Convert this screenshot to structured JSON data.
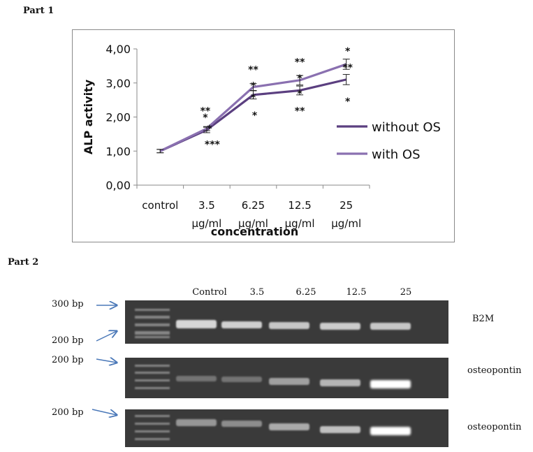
{
  "part1_title": "Part 1",
  "part2_title": "Part 2",
  "chart_data": {
    "type": "line",
    "categories": [
      "control",
      "3.5 µg/ml",
      "6.25 µg/ml",
      "12.5 µg/ml",
      "25 µg/ml"
    ],
    "category_lines": [
      [
        "control"
      ],
      [
        "3.5",
        "µg/ml"
      ],
      [
        "6.25",
        "µg/ml"
      ],
      [
        "12.5",
        "µg/ml"
      ],
      [
        "25",
        "µg/ml"
      ]
    ],
    "series": [
      {
        "name": "without OS",
        "values": [
          1.0,
          1.62,
          2.65,
          2.78,
          3.1
        ],
        "errors": [
          0.05,
          0.08,
          0.12,
          0.13,
          0.15
        ],
        "color": "#5b3f80"
      },
      {
        "name": "with OS",
        "values": [
          1.0,
          1.66,
          2.88,
          3.08,
          3.55
        ],
        "errors": [
          0.05,
          0.06,
          0.1,
          0.14,
          0.15
        ],
        "color": "#8a70b0"
      }
    ],
    "ylabel": "ALP activity",
    "xlabel": "concentration",
    "ylim": [
      0,
      4
    ],
    "yticks": [
      "0,00",
      "1,00",
      "2,00",
      "3,00",
      "4,00"
    ],
    "legend_position": "right",
    "annotations": [
      "**",
      "*",
      "*",
      "***",
      "**",
      "*",
      "*",
      "*",
      "**",
      "*",
      "*",
      "**",
      "*",
      "**",
      "*"
    ]
  },
  "gel": {
    "lanes": [
      "Control",
      "3.5",
      "6.25",
      "12.5",
      "25"
    ],
    "markers": {
      "b2m_top": "300 bp",
      "b2m_bottom": "200 bp",
      "opn1": "200 bp",
      "opn2": "200 bp"
    },
    "genes": {
      "row1": "B2M",
      "row2": "osteopontin",
      "row3": "osteopontin"
    },
    "band_intensity": {
      "row1": [
        0.85,
        0.82,
        0.78,
        0.8,
        0.78
      ],
      "row2": [
        0.35,
        0.35,
        0.6,
        0.7,
        1.0
      ],
      "row3": [
        0.55,
        0.5,
        0.65,
        0.75,
        1.0
      ]
    }
  }
}
